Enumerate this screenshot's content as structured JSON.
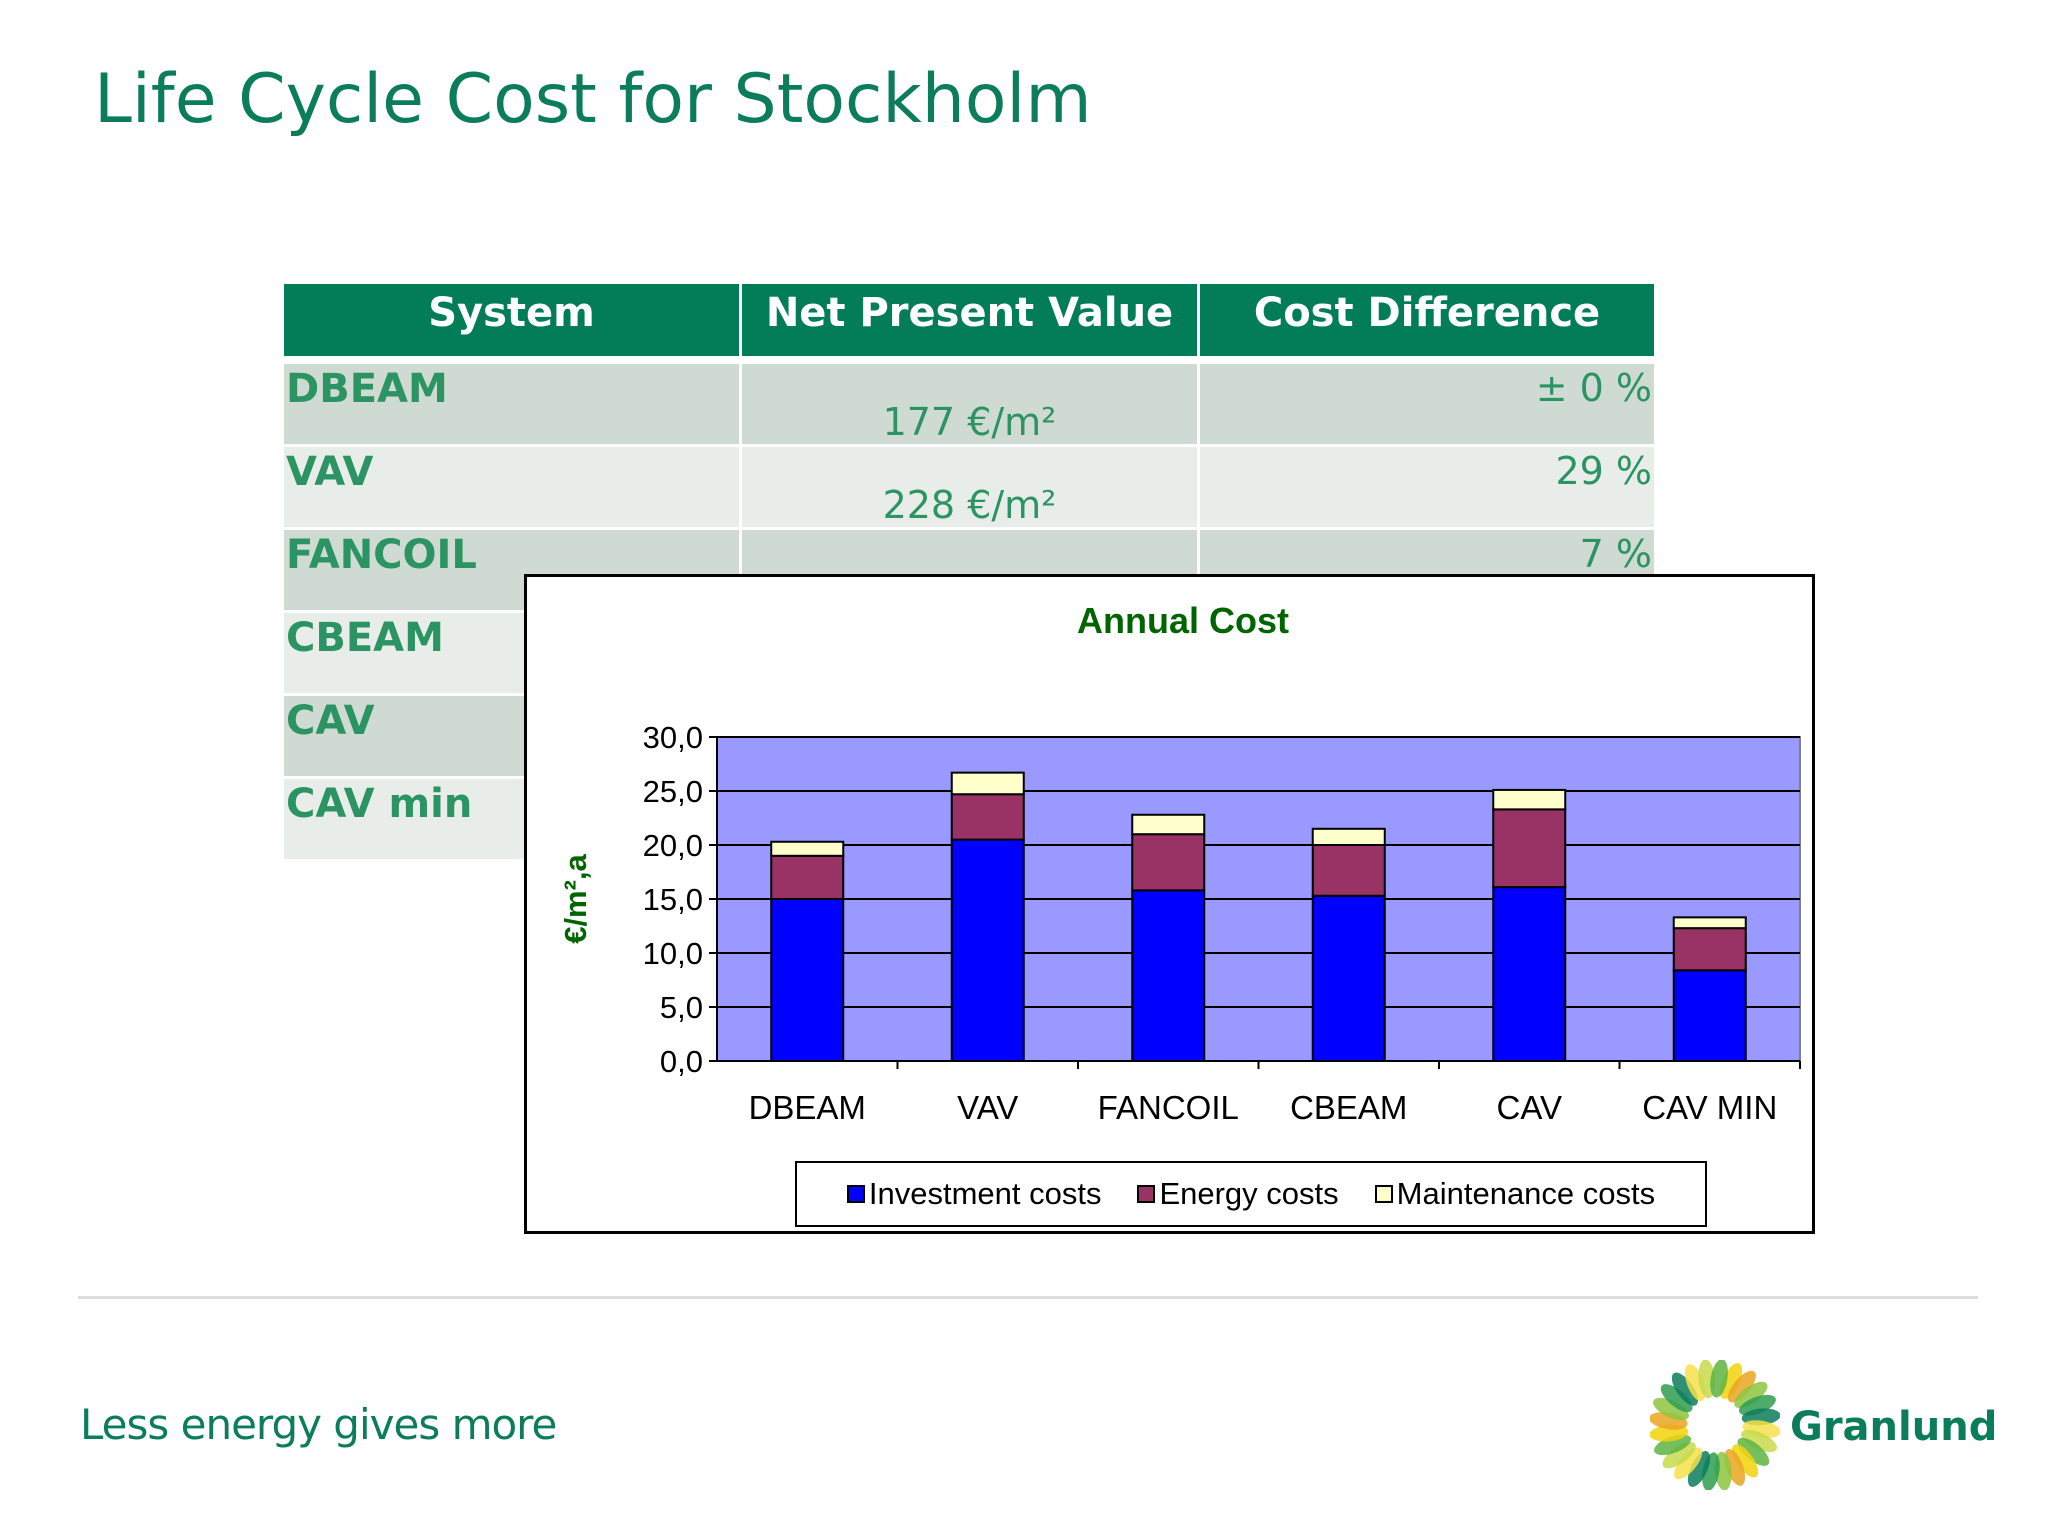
{
  "slide": {
    "title": "Life Cycle Cost for Stockholm",
    "tagline": "Less energy gives more",
    "logo_name": "Granlund"
  },
  "table": {
    "headers": [
      "System",
      "Net Present Value",
      "Cost Difference"
    ],
    "rows": [
      {
        "system": "DBEAM",
        "npv": "177 €/m²",
        "diff": "± 0 %"
      },
      {
        "system": "VAV",
        "npv": "228 €/m²",
        "diff": "29 %"
      },
      {
        "system": "FANCOIL",
        "npv": "",
        "diff": "7 %"
      },
      {
        "system": "CBEAM",
        "npv": "",
        "diff": ""
      },
      {
        "system": "CAV",
        "npv": "",
        "diff": ""
      },
      {
        "system": "CAV min",
        "npv": "",
        "diff": ""
      }
    ]
  },
  "colors": {
    "accent": "#037d58",
    "plot_bg": "#9999ff",
    "investment": "#0000ff",
    "energy": "#993366",
    "maintenance": "#ffffcc",
    "chart_title": "#006400"
  },
  "chart_data": {
    "type": "bar",
    "stacked": true,
    "title": "Annual Cost",
    "ylabel": "€/m²,a",
    "xlabel": "",
    "ylim": [
      0,
      30
    ],
    "yticks": [
      "0,0",
      "5,0",
      "10,0",
      "15,0",
      "20,0",
      "25,0",
      "30,0"
    ],
    "categories": [
      "DBEAM",
      "VAV",
      "FANCOIL",
      "CBEAM",
      "CAV",
      "CAV MIN"
    ],
    "series": [
      {
        "name": "Investment costs",
        "values": [
          15.0,
          20.5,
          15.8,
          15.3,
          16.1,
          8.4
        ]
      },
      {
        "name": "Energy costs",
        "values": [
          4.0,
          4.2,
          5.2,
          4.7,
          7.2,
          3.9
        ]
      },
      {
        "name": "Maintenance costs",
        "values": [
          1.3,
          2.0,
          1.8,
          1.5,
          1.8,
          1.0
        ]
      }
    ],
    "grid": true,
    "legend": "bottom"
  }
}
